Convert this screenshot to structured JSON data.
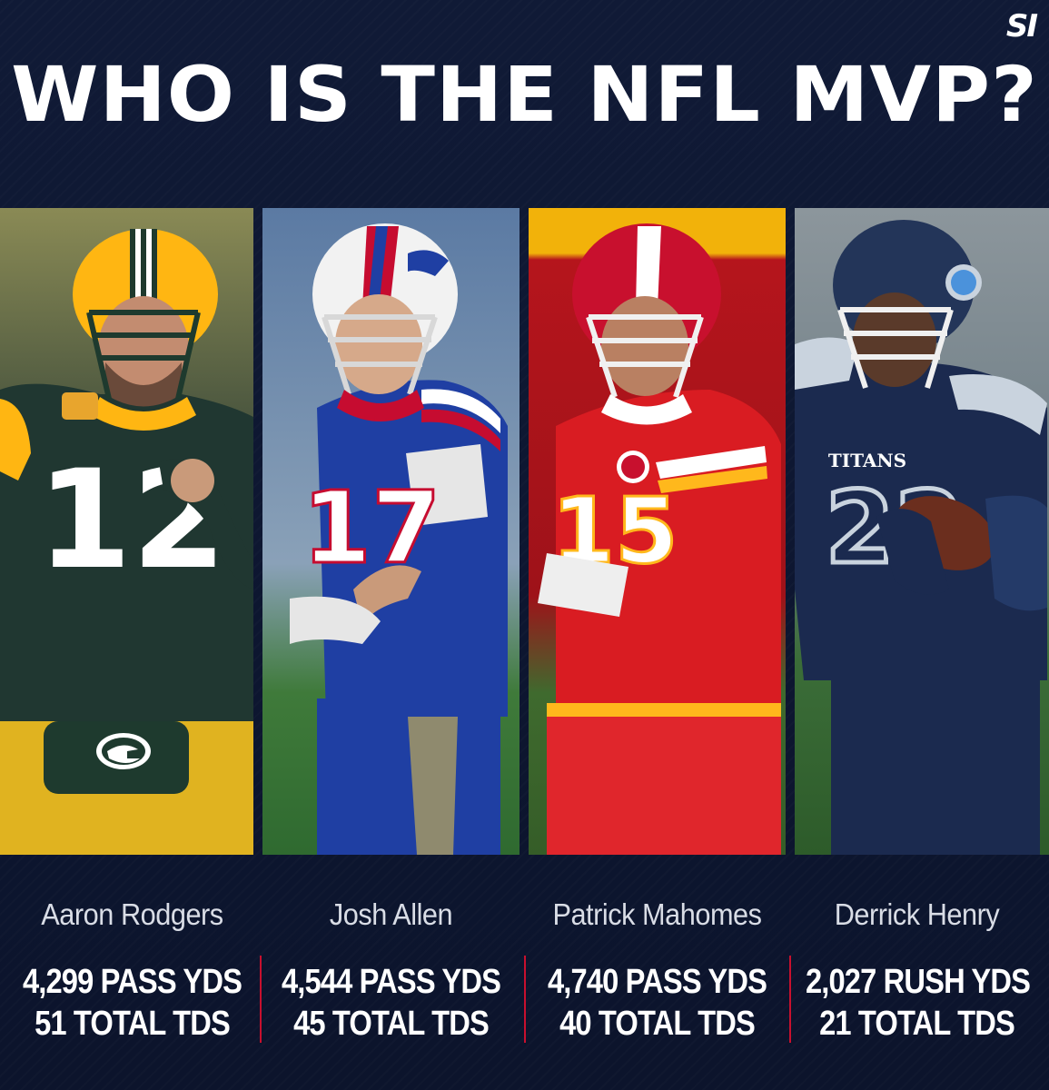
{
  "brand": {
    "logo": "SI"
  },
  "title": "WHO IS THE NFL MVP?",
  "players": [
    {
      "name": "Aaron Rodgers",
      "stat1": "4,299 PASS YDS",
      "stat2": "51 TOTAL TDS",
      "jersey_number": "12",
      "colors": {
        "jersey": "#203731",
        "accent": "#ffb612",
        "helmet": "#ffb612",
        "bg": "#3b4a3c"
      }
    },
    {
      "name": "Josh Allen",
      "stat1": "4,544 PASS YDS",
      "stat2": "45 TOTAL TDS",
      "jersey_number": "17",
      "colors": {
        "jersey": "#1f3fa3",
        "accent": "#c60c30",
        "helmet": "#f2f2f2",
        "bg": "#5e7fa8"
      }
    },
    {
      "name": "Patrick Mahomes",
      "stat1": "4,740 PASS YDS",
      "stat2": "40 TOTAL TDS",
      "jersey_number": "15",
      "colors": {
        "jersey": "#d91c22",
        "accent": "#ffb81c",
        "helmet": "#c8102e",
        "bg": "#b5151c"
      }
    },
    {
      "name": "Derrick Henry",
      "stat1": "2,027 RUSH YDS",
      "stat2": "21 TOTAL TDS",
      "jersey_number": "22",
      "colors": {
        "jersey": "#1b2a4f",
        "accent": "#4b92db",
        "helmet": "#1b2a4f",
        "bg": "#7f8c94"
      }
    }
  ],
  "divider_color": "#c8102e"
}
